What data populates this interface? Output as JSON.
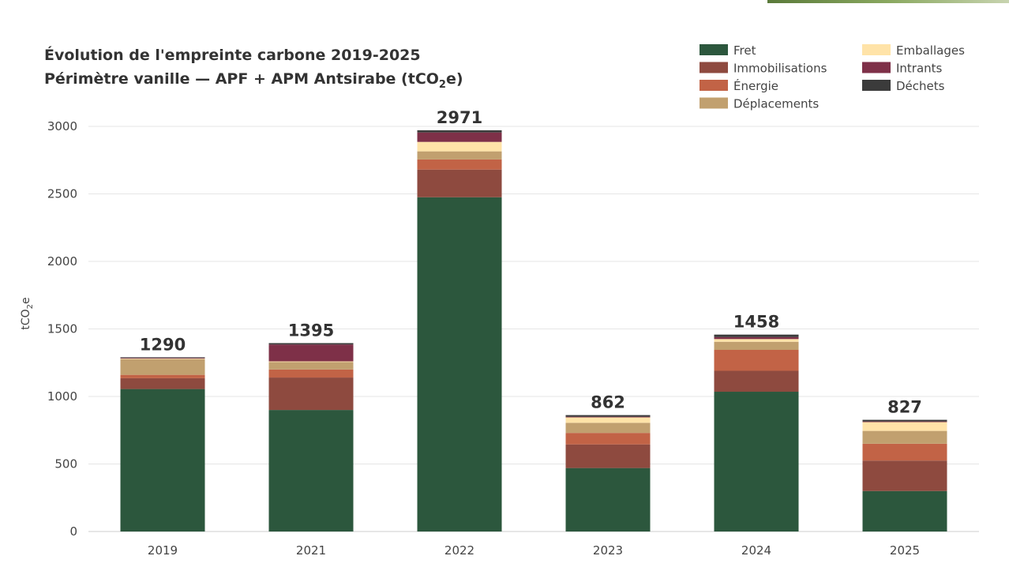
{
  "chart_data": {
    "type": "bar",
    "stacked": true,
    "title_line1": "Évolution de l'empreinte carbone 2019-2025",
    "title_line2_prefix": "Périmètre vanille — APF + APM Antsirabe (tCO",
    "title_line2_sub": "2",
    "title_line2_suffix": "e)",
    "ylabel_prefix": "tCO",
    "ylabel_sub": "2",
    "ylabel_suffix": "e",
    "ylim": [
      0,
      3000
    ],
    "yticks": [
      0,
      500,
      1000,
      1500,
      2000,
      2500,
      3000
    ],
    "grid": true,
    "legend_position": "top-right",
    "categories": [
      "2019",
      "2021",
      "2022",
      "2023",
      "2024",
      "2025"
    ],
    "totals": [
      1290,
      1395,
      2971,
      862,
      1458,
      827
    ],
    "series": [
      {
        "name": "Fret",
        "color": "#2c573d",
        "values": [
          1055,
          900,
          2475,
          470,
          1035,
          300
        ]
      },
      {
        "name": "Immobilisations",
        "color": "#8e4a3f",
        "values": [
          80,
          240,
          205,
          175,
          155,
          225
        ]
      },
      {
        "name": "Énergie",
        "color": "#c26346",
        "values": [
          25,
          60,
          75,
          85,
          155,
          125
        ]
      },
      {
        "name": "Déplacements",
        "color": "#c1a06f",
        "values": [
          115,
          55,
          60,
          75,
          60,
          95
        ]
      },
      {
        "name": "Emballages",
        "color": "#ffe3a8",
        "values": [
          5,
          5,
          70,
          40,
          20,
          65
        ]
      },
      {
        "name": "Intrants",
        "color": "#7e3048",
        "values": [
          5,
          125,
          70,
          5,
          15,
          5
        ]
      },
      {
        "name": "Déchets",
        "color": "#3b3b3b",
        "values": [
          5,
          10,
          16,
          12,
          18,
          12
        ]
      }
    ]
  }
}
